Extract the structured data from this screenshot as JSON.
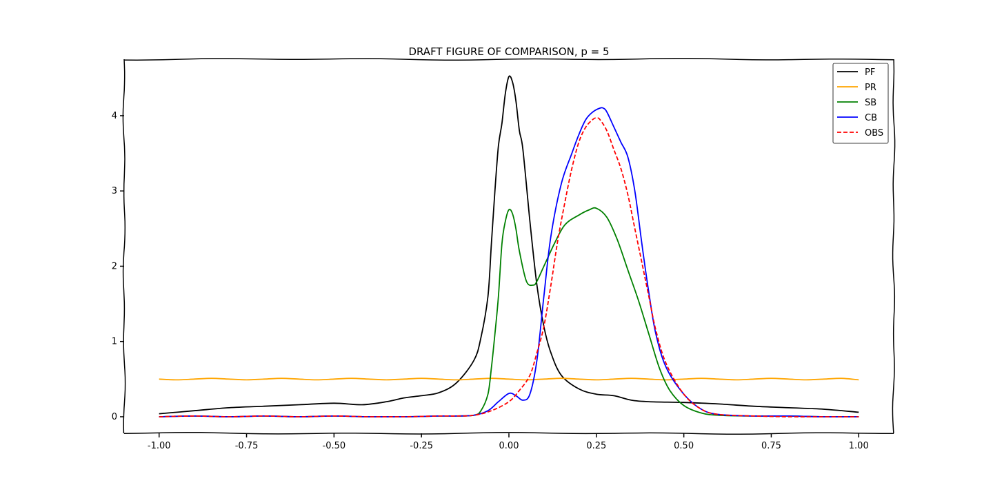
{
  "chart_data": {
    "type": "line",
    "title": "DRAFT FIGURE OF COMPARISON, p = 5",
    "xlabel": "",
    "ylabel": "",
    "xlim": [
      -1.1,
      1.1
    ],
    "ylim": [
      -0.22,
      4.75
    ],
    "xticks": [
      -1.0,
      -0.75,
      -0.5,
      -0.25,
      0.0,
      0.25,
      0.5,
      0.75,
      1.0
    ],
    "xtick_labels": [
      "-1.00",
      "-0.75",
      "-0.50",
      "-0.25",
      "0.00",
      "0.25",
      "0.50",
      "0.75",
      "1.00"
    ],
    "yticks": [
      0,
      1,
      2,
      3,
      4
    ],
    "ytick_labels": [
      "0",
      "1",
      "2",
      "3",
      "4"
    ],
    "grid": false,
    "legend_position": "top-right",
    "series": [
      {
        "name": "PF",
        "color": "#000000",
        "dashed": false,
        "x": [
          -1.0,
          -0.9,
          -0.8,
          -0.7,
          -0.6,
          -0.5,
          -0.42,
          -0.35,
          -0.3,
          -0.25,
          -0.2,
          -0.15,
          -0.1,
          -0.08,
          -0.06,
          -0.05,
          -0.04,
          -0.03,
          -0.02,
          -0.01,
          0.0,
          0.01,
          0.02,
          0.03,
          0.04,
          0.06,
          0.08,
          0.1,
          0.12,
          0.15,
          0.2,
          0.25,
          0.3,
          0.35,
          0.4,
          0.5,
          0.6,
          0.7,
          0.8,
          0.9,
          1.0
        ],
        "y": [
          0.04,
          0.08,
          0.12,
          0.14,
          0.16,
          0.18,
          0.16,
          0.2,
          0.25,
          0.28,
          0.32,
          0.45,
          0.75,
          1.05,
          1.6,
          2.3,
          3.0,
          3.6,
          3.9,
          4.3,
          4.52,
          4.45,
          4.2,
          3.8,
          3.55,
          2.6,
          1.75,
          1.2,
          0.85,
          0.55,
          0.37,
          0.3,
          0.28,
          0.22,
          0.2,
          0.19,
          0.17,
          0.14,
          0.12,
          0.1,
          0.06
        ]
      },
      {
        "name": "PR",
        "color": "#ffa500",
        "dashed": false,
        "x": [
          -1.0,
          -0.95,
          -0.9,
          -0.85,
          -0.8,
          -0.75,
          -0.7,
          -0.65,
          -0.6,
          -0.55,
          -0.5,
          -0.45,
          -0.4,
          -0.35,
          -0.3,
          -0.25,
          -0.2,
          -0.15,
          -0.1,
          -0.05,
          0.0,
          0.05,
          0.1,
          0.15,
          0.2,
          0.25,
          0.3,
          0.35,
          0.4,
          0.45,
          0.5,
          0.55,
          0.6,
          0.65,
          0.7,
          0.75,
          0.8,
          0.85,
          0.9,
          0.95,
          1.0
        ],
        "y": [
          0.5,
          0.49,
          0.5,
          0.51,
          0.5,
          0.49,
          0.5,
          0.51,
          0.5,
          0.49,
          0.5,
          0.51,
          0.5,
          0.49,
          0.5,
          0.51,
          0.5,
          0.49,
          0.5,
          0.51,
          0.5,
          0.49,
          0.5,
          0.51,
          0.5,
          0.49,
          0.5,
          0.51,
          0.5,
          0.49,
          0.5,
          0.51,
          0.5,
          0.49,
          0.5,
          0.51,
          0.5,
          0.49,
          0.5,
          0.51,
          0.49
        ]
      },
      {
        "name": "SB",
        "color": "#008000",
        "dashed": false,
        "x": [
          -1.0,
          -0.9,
          -0.8,
          -0.7,
          -0.6,
          -0.5,
          -0.4,
          -0.3,
          -0.2,
          -0.15,
          -0.1,
          -0.08,
          -0.06,
          -0.05,
          -0.04,
          -0.03,
          -0.02,
          -0.01,
          0.0,
          0.01,
          0.02,
          0.03,
          0.05,
          0.07,
          0.08,
          0.1,
          0.13,
          0.16,
          0.2,
          0.23,
          0.25,
          0.28,
          0.31,
          0.34,
          0.37,
          0.4,
          0.43,
          0.46,
          0.5,
          0.55,
          0.6,
          0.7,
          0.8,
          0.9,
          1.0
        ],
        "y": [
          0.0,
          0.01,
          0.0,
          0.01,
          0.0,
          0.01,
          0.0,
          0.0,
          0.01,
          0.01,
          0.02,
          0.08,
          0.3,
          0.65,
          1.1,
          1.6,
          2.3,
          2.6,
          2.75,
          2.7,
          2.5,
          2.2,
          1.8,
          1.75,
          1.8,
          2.0,
          2.3,
          2.55,
          2.68,
          2.75,
          2.77,
          2.65,
          2.35,
          1.95,
          1.55,
          1.1,
          0.65,
          0.35,
          0.15,
          0.05,
          0.02,
          0.01,
          0.01,
          0.0,
          0.0
        ]
      },
      {
        "name": "CB",
        "color": "#0000ff",
        "dashed": false,
        "x": [
          -1.0,
          -0.9,
          -0.8,
          -0.7,
          -0.6,
          -0.5,
          -0.4,
          -0.3,
          -0.2,
          -0.15,
          -0.1,
          -0.06,
          -0.03,
          0.0,
          0.02,
          0.04,
          0.06,
          0.08,
          0.1,
          0.12,
          0.15,
          0.18,
          0.2,
          0.22,
          0.24,
          0.26,
          0.27,
          0.28,
          0.3,
          0.32,
          0.34,
          0.36,
          0.38,
          0.4,
          0.42,
          0.45,
          0.5,
          0.55,
          0.6,
          0.7,
          0.8,
          0.9,
          1.0
        ],
        "y": [
          0.0,
          0.01,
          0.0,
          0.01,
          0.0,
          0.01,
          0.0,
          0.0,
          0.01,
          0.01,
          0.02,
          0.08,
          0.2,
          0.31,
          0.28,
          0.22,
          0.3,
          0.75,
          1.6,
          2.4,
          3.1,
          3.5,
          3.75,
          3.95,
          4.05,
          4.1,
          4.1,
          4.05,
          3.85,
          3.65,
          3.45,
          3.0,
          2.3,
          1.65,
          1.1,
          0.65,
          0.3,
          0.1,
          0.03,
          0.01,
          0.01,
          0.0,
          0.0
        ]
      },
      {
        "name": "OBS",
        "color": "#ff0000",
        "dashed": true,
        "x": [
          -1.0,
          -0.9,
          -0.8,
          -0.7,
          -0.6,
          -0.5,
          -0.4,
          -0.3,
          -0.2,
          -0.15,
          -0.1,
          -0.05,
          0.0,
          0.03,
          0.06,
          0.08,
          0.1,
          0.12,
          0.14,
          0.16,
          0.18,
          0.2,
          0.22,
          0.24,
          0.25,
          0.26,
          0.28,
          0.3,
          0.32,
          0.34,
          0.36,
          0.38,
          0.4,
          0.42,
          0.45,
          0.5,
          0.55,
          0.6,
          0.7,
          0.8,
          0.9,
          1.0
        ],
        "y": [
          0.0,
          0.01,
          0.0,
          0.01,
          0.0,
          0.01,
          0.0,
          0.0,
          0.01,
          0.01,
          0.02,
          0.08,
          0.2,
          0.35,
          0.55,
          0.85,
          1.2,
          1.75,
          2.35,
          2.85,
          3.3,
          3.65,
          3.85,
          3.95,
          3.97,
          3.95,
          3.8,
          3.55,
          3.3,
          2.95,
          2.5,
          2.05,
          1.6,
          1.15,
          0.7,
          0.3,
          0.1,
          0.03,
          0.01,
          0.0,
          0.0,
          0.0
        ]
      }
    ]
  }
}
